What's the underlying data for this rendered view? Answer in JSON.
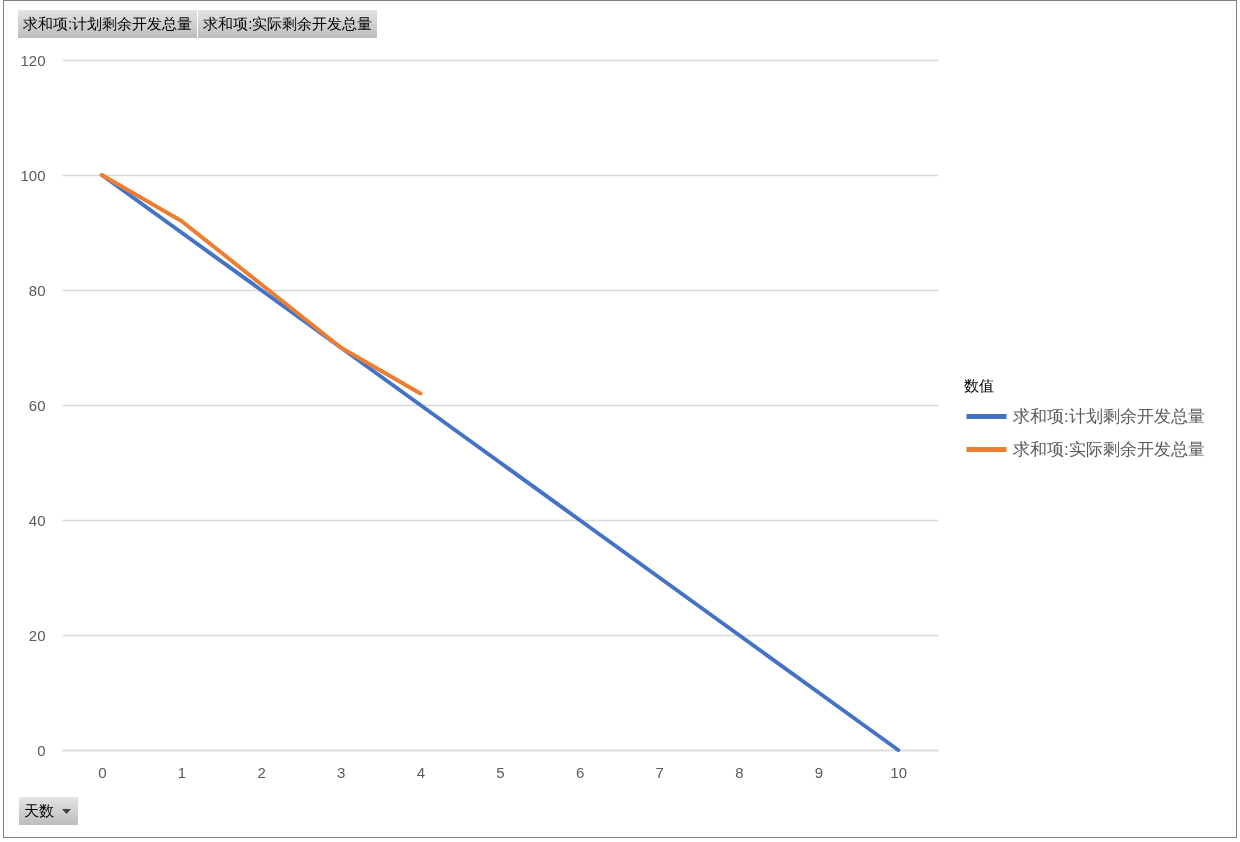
{
  "chart_data": {
    "type": "line",
    "xlabel": "天数",
    "legend_title": "数值",
    "annotations": [
      "求和项:计划剩余开发总量",
      "求和项:实际剩余开发总量"
    ],
    "categories": [
      "0",
      "1",
      "2",
      "3",
      "4",
      "5",
      "6",
      "7",
      "8",
      "9",
      "10"
    ],
    "series": [
      {
        "name": "求和项:计划剩余开发总量",
        "color": "#4472c4",
        "values": [
          100,
          90,
          80,
          70,
          60,
          50,
          40,
          30,
          20,
          10,
          0
        ]
      },
      {
        "name": "求和项:实际剩余开发总量",
        "color": "#ed7d31",
        "values": [
          100,
          92,
          81,
          70,
          62,
          null,
          null,
          null,
          null,
          null,
          null
        ]
      }
    ],
    "ylim": [
      0,
      120
    ],
    "yticks": [
      0,
      20,
      40,
      60,
      80,
      100,
      120
    ],
    "grid": "y",
    "legend": "right"
  }
}
